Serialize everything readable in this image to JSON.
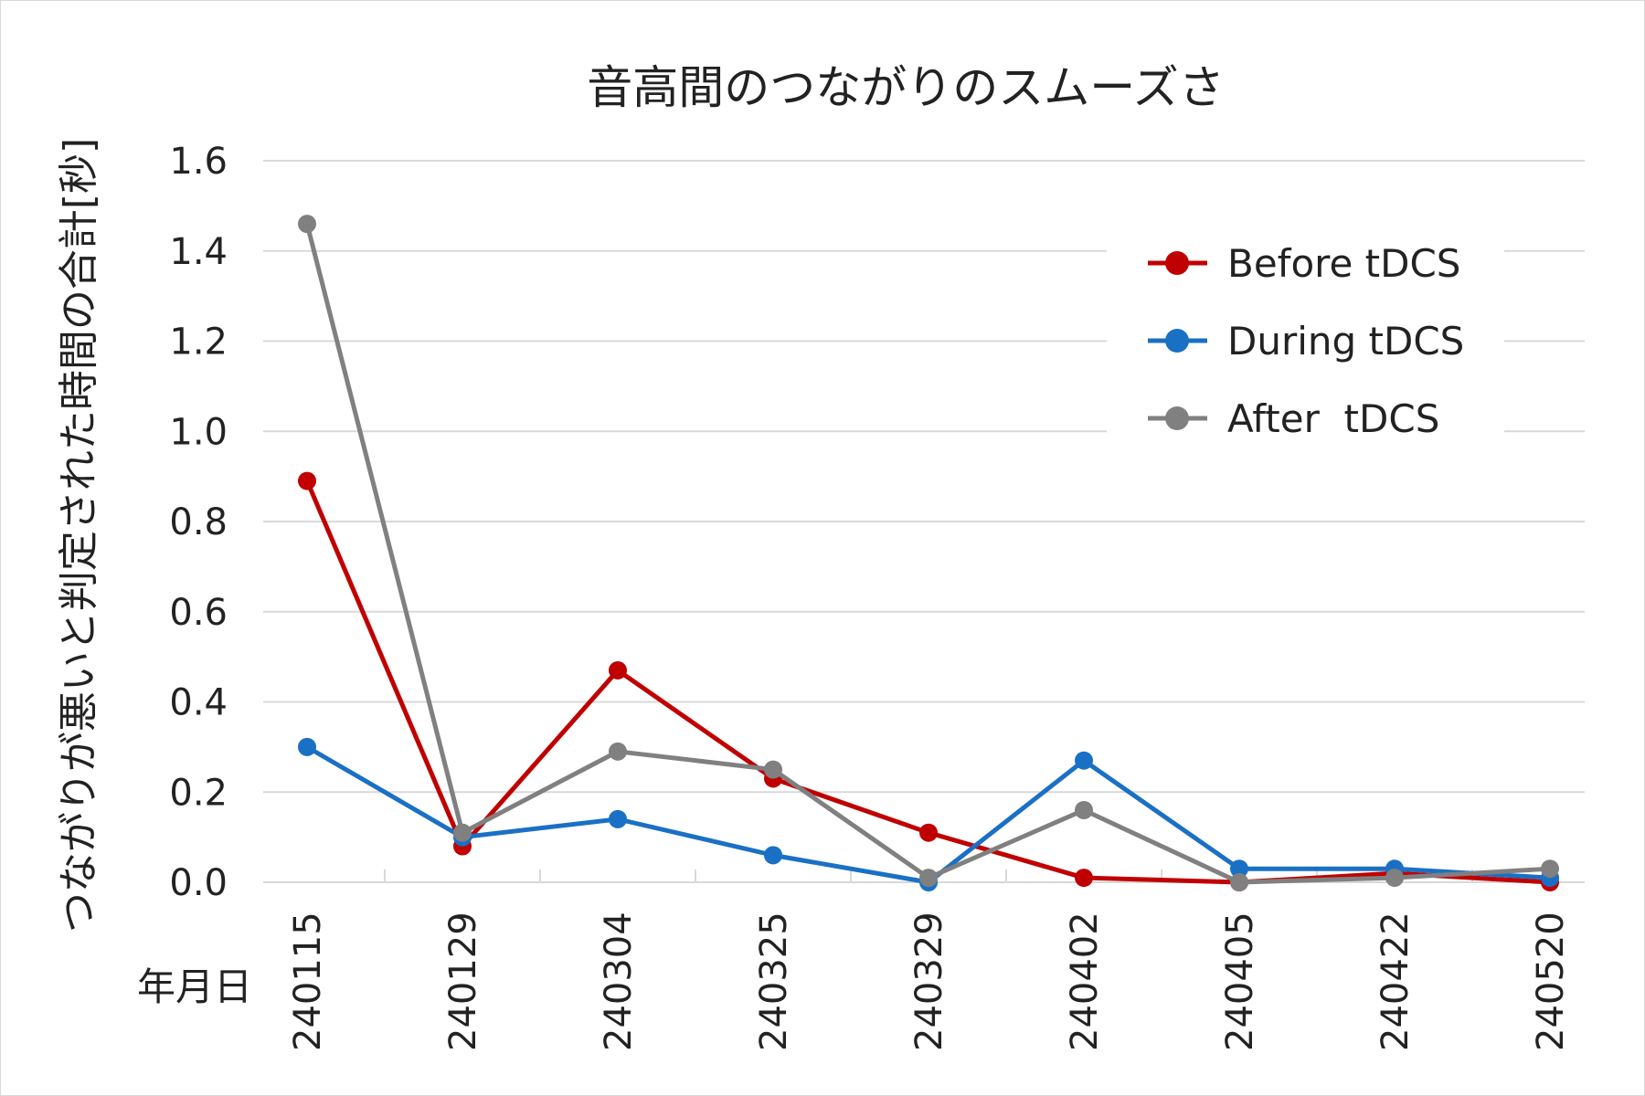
{
  "chart_data": {
    "type": "line",
    "title": "音高間のつながりのスムーズさ",
    "xlabel": "年月日",
    "ylabel": "つながりが悪いと判定された時間の合計[秒]",
    "ylim": [
      0,
      1.6
    ],
    "yticks": [
      "0.0",
      "0.2",
      "0.4",
      "0.6",
      "0.8",
      "1.0",
      "1.2",
      "1.4",
      "1.6"
    ],
    "grid": true,
    "legend_position": "top-right",
    "categories": [
      "240115",
      "240129",
      "240304",
      "240325",
      "240329",
      "240402",
      "240405",
      "240422",
      "240520"
    ],
    "series": [
      {
        "name": "Before tDCS",
        "color": "#c00000",
        "values": [
          0.89,
          0.08,
          0.47,
          0.23,
          0.11,
          0.01,
          0.0,
          0.02,
          0.0
        ]
      },
      {
        "name": "During tDCS",
        "color": "#1a70c4",
        "values": [
          0.3,
          0.1,
          0.14,
          0.06,
          0.0,
          0.27,
          0.03,
          0.03,
          0.01
        ]
      },
      {
        "name": "After  tDCS",
        "color": "#808080",
        "values": [
          1.46,
          0.11,
          0.29,
          0.25,
          0.01,
          0.16,
          0.0,
          0.01,
          0.03
        ]
      }
    ]
  }
}
